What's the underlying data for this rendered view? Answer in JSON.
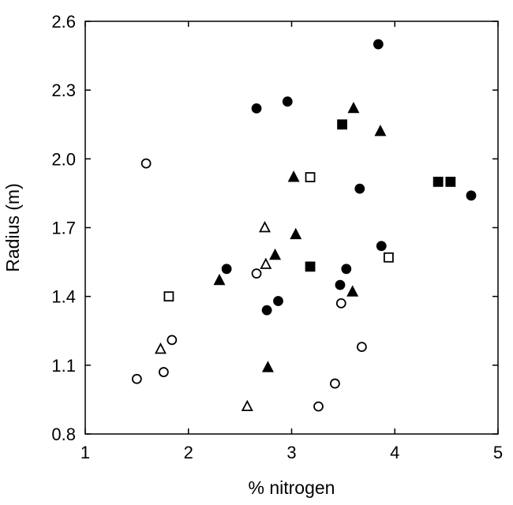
{
  "chart_data": {
    "type": "scatter",
    "xlabel": "% nitrogen",
    "ylabel": "Radius (m)",
    "xlim": [
      1,
      5
    ],
    "ylim": [
      0.8,
      2.6
    ],
    "xticks": [
      "1",
      "2",
      "3",
      "4",
      "5"
    ],
    "yticks": [
      "0.8",
      "1.1",
      "1.4",
      "1.7",
      "2.0",
      "2.3",
      "2.6"
    ],
    "grid": false,
    "legend": "none",
    "series": [
      {
        "marker": "filled-circle",
        "points": [
          [
            3.84,
            2.5
          ],
          [
            2.66,
            2.22
          ],
          [
            2.96,
            2.25
          ],
          [
            3.66,
            1.87
          ],
          [
            4.74,
            1.84
          ],
          [
            3.87,
            1.62
          ],
          [
            2.37,
            1.52
          ],
          [
            3.53,
            1.52
          ],
          [
            3.47,
            1.45
          ],
          [
            2.87,
            1.38
          ],
          [
            2.76,
            1.34
          ]
        ]
      },
      {
        "marker": "filled-triangle",
        "points": [
          [
            3.6,
            2.22
          ],
          [
            3.86,
            2.12
          ],
          [
            3.02,
            1.92
          ],
          [
            3.04,
            1.67
          ],
          [
            2.84,
            1.58
          ],
          [
            2.3,
            1.47
          ],
          [
            3.59,
            1.42
          ],
          [
            2.77,
            1.09
          ]
        ]
      },
      {
        "marker": "filled-square",
        "points": [
          [
            3.49,
            2.15
          ],
          [
            4.42,
            1.9
          ],
          [
            4.54,
            1.9
          ],
          [
            3.18,
            1.53
          ]
        ]
      },
      {
        "marker": "open-circle",
        "points": [
          [
            1.59,
            1.98
          ],
          [
            2.66,
            1.5
          ],
          [
            3.48,
            1.37
          ],
          [
            1.84,
            1.21
          ],
          [
            3.68,
            1.18
          ],
          [
            1.76,
            1.07
          ],
          [
            1.5,
            1.04
          ],
          [
            3.42,
            1.02
          ],
          [
            3.26,
            0.92
          ]
        ]
      },
      {
        "marker": "open-triangle",
        "points": [
          [
            2.74,
            1.7
          ],
          [
            2.75,
            1.54
          ],
          [
            1.73,
            1.17
          ],
          [
            2.57,
            0.92
          ]
        ]
      },
      {
        "marker": "open-square",
        "points": [
          [
            3.18,
            1.92
          ],
          [
            3.94,
            1.57
          ],
          [
            1.81,
            1.4
          ]
        ]
      }
    ]
  }
}
